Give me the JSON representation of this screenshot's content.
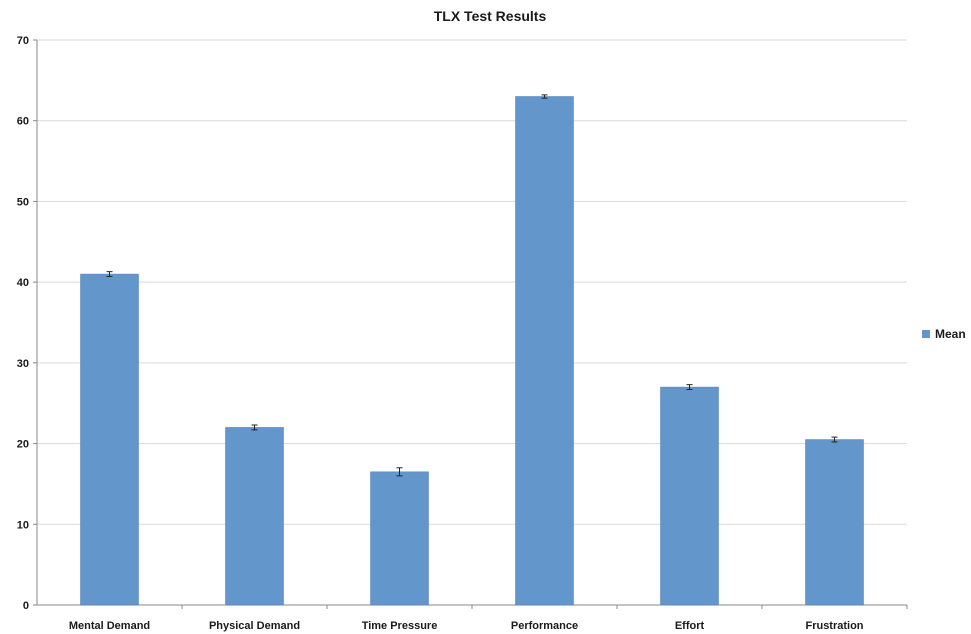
{
  "chart_data": {
    "type": "bar",
    "title": "TLX Test Results",
    "xlabel": "",
    "ylabel": "",
    "categories": [
      "Mental Demand",
      "Physical Demand",
      "Time Pressure",
      "Performance",
      "Effort",
      "Frustration"
    ],
    "series": [
      {
        "name": "Mean",
        "values": [
          41,
          22,
          16.5,
          63,
          27,
          20.5
        ],
        "error": [
          0.3,
          0.3,
          0.5,
          0.2,
          0.3,
          0.3
        ]
      }
    ],
    "ylim": [
      0,
      70
    ],
    "yticks": [
      0,
      10,
      20,
      30,
      40,
      50,
      60,
      70
    ],
    "grid": true,
    "legend_position": "right",
    "colors": {
      "bar": "#6396cb",
      "bar_edge": "#4f7fb3",
      "grid": "#d9d9d9",
      "axis": "#888888",
      "error_bar": "#222222"
    }
  }
}
